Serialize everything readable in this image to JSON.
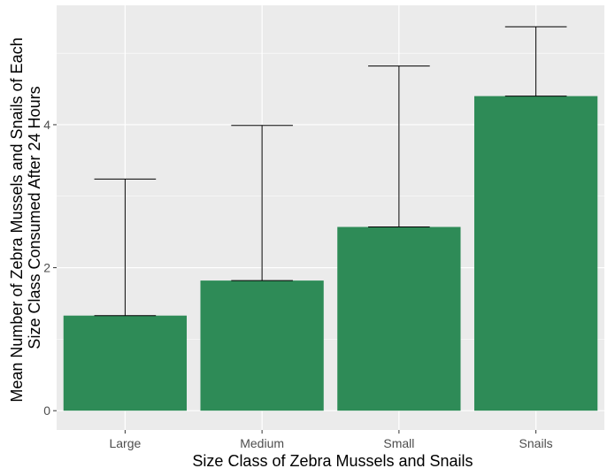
{
  "chart_data": {
    "type": "bar",
    "title": "",
    "xlabel": "Size Class of Zebra Mussels and Snails",
    "ylabel_lines": [
      "Mean Number of Zebra Mussels and Snails of Each",
      "Size Class Consumed After 24 Hours"
    ],
    "categories": [
      "Large",
      "Medium",
      "Small",
      "Snails"
    ],
    "values": [
      1.33,
      1.82,
      2.57,
      4.4
    ],
    "error_upper": [
      3.24,
      3.99,
      4.82,
      5.37
    ],
    "error_lower": [
      1.33,
      1.82,
      2.57,
      4.4
    ],
    "ylim": [
      -0.27,
      5.67
    ],
    "yticks": [
      0,
      2,
      4
    ],
    "bar_color": "#2e8b57",
    "panel_background": "#ebebeb",
    "grid": true,
    "legend": "none"
  }
}
